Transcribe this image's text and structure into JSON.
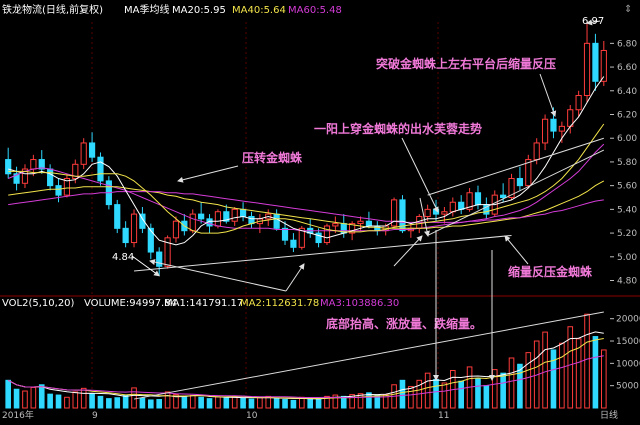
{
  "colors": {
    "up": "#ff3c3c",
    "down": "#2fd9ff",
    "ma5": "#ffffff",
    "ma10": "#f2e34a",
    "ma20": "#d43cd7",
    "vol_ma5": "#ffffff",
    "vol_ma10": "#f2e34a",
    "vol_ma20": "#d43cd7",
    "annotation": "#f079d8",
    "trendline": "#dcdcdc",
    "axis_text": "#bdbdbd"
  },
  "header": {
    "title": "铁龙物流(日线,前复权)",
    "ma_label": "MA季均线",
    "ma20": "MA20:5.95",
    "ma40": "MA40:5.64",
    "ma60": "MA60:5.48"
  },
  "volume_header": {
    "label": "VOL2(5,10,20)",
    "volume": "VOLUME:94997.84",
    "ma1": "MA1:141791.17",
    "ma2": "MA2:112631.78",
    "ma3": "MA3:103886.30"
  },
  "annotations": {
    "breakout": "突破金蜘蛛上左右平台后缩量反压",
    "one_yang": "一阳上穿金蜘蛛的出水芙蓉走势",
    "support": "压转金蜘蛛",
    "shrink_retest": "缩量反压金蜘蛛",
    "bottom": "底部抬高、涨放量、跌缩量。",
    "high_label": "6.97",
    "low_label": "4.84"
  },
  "bottom_labels": [
    "2016年",
    "9",
    "10",
    "11",
    "日线"
  ],
  "chart_data": [
    {
      "type": "candlestick",
      "title": "铁龙物流(日线,前复权)",
      "y_ticks": [
        6.8,
        6.6,
        6.4,
        6.2,
        6.0,
        5.8,
        5.6,
        5.4,
        5.2,
        5.0,
        4.8
      ],
      "ylim": [
        4.72,
        6.98
      ],
      "grid": false,
      "candles": [
        [
          5.82,
          5.92,
          5.66,
          5.7
        ],
        [
          5.7,
          5.76,
          5.56,
          5.62
        ],
        [
          5.62,
          5.78,
          5.58,
          5.74
        ],
        [
          5.74,
          5.86,
          5.68,
          5.82
        ],
        [
          5.82,
          5.9,
          5.7,
          5.74
        ],
        [
          5.74,
          5.78,
          5.56,
          5.6
        ],
        [
          5.6,
          5.66,
          5.46,
          5.52
        ],
        [
          5.52,
          5.7,
          5.5,
          5.66
        ],
        [
          5.66,
          5.82,
          5.62,
          5.78
        ],
        [
          5.78,
          6.0,
          5.74,
          5.96
        ],
        [
          5.96,
          6.05,
          5.8,
          5.84
        ],
        [
          5.84,
          5.88,
          5.6,
          5.64
        ],
        [
          5.64,
          5.68,
          5.4,
          5.44
        ],
        [
          5.44,
          5.48,
          5.2,
          5.24
        ],
        [
          5.24,
          5.3,
          5.08,
          5.12
        ],
        [
          5.12,
          5.4,
          5.08,
          5.36
        ],
        [
          5.36,
          5.42,
          5.2,
          5.24
        ],
        [
          5.24,
          5.28,
          4.98,
          5.04
        ],
        [
          5.04,
          5.08,
          4.84,
          4.92
        ],
        [
          4.92,
          5.18,
          4.9,
          5.16
        ],
        [
          5.16,
          5.34,
          5.12,
          5.3
        ],
        [
          5.3,
          5.36,
          5.18,
          5.22
        ],
        [
          5.22,
          5.4,
          5.2,
          5.36
        ],
        [
          5.36,
          5.46,
          5.28,
          5.32
        ],
        [
          5.32,
          5.36,
          5.2,
          5.26
        ],
        [
          5.26,
          5.4,
          5.24,
          5.38
        ],
        [
          5.38,
          5.44,
          5.28,
          5.3
        ],
        [
          5.3,
          5.42,
          5.26,
          5.4
        ],
        [
          5.4,
          5.46,
          5.3,
          5.34
        ],
        [
          5.34,
          5.38,
          5.24,
          5.28
        ],
        [
          5.28,
          5.36,
          5.2,
          5.32
        ],
        [
          5.32,
          5.4,
          5.26,
          5.36
        ],
        [
          5.36,
          5.4,
          5.22,
          5.24
        ],
        [
          5.24,
          5.3,
          5.1,
          5.14
        ],
        [
          5.14,
          5.2,
          5.04,
          5.08
        ],
        [
          5.08,
          5.26,
          5.06,
          5.24
        ],
        [
          5.24,
          5.32,
          5.16,
          5.2
        ],
        [
          5.2,
          5.24,
          5.08,
          5.12
        ],
        [
          5.12,
          5.28,
          5.1,
          5.26
        ],
        [
          5.26,
          5.34,
          5.2,
          5.28
        ],
        [
          5.28,
          5.36,
          5.16,
          5.2
        ],
        [
          5.2,
          5.3,
          5.14,
          5.28
        ],
        [
          5.28,
          5.34,
          5.22,
          5.3
        ],
        [
          5.3,
          5.38,
          5.24,
          5.26
        ],
        [
          5.26,
          5.3,
          5.18,
          5.22
        ],
        [
          5.22,
          5.28,
          5.18,
          5.26
        ],
        [
          5.26,
          5.5,
          5.24,
          5.48
        ],
        [
          5.48,
          5.52,
          5.2,
          5.22
        ],
        [
          5.22,
          5.28,
          5.16,
          5.24
        ],
        [
          5.24,
          5.36,
          5.2,
          5.34
        ],
        [
          5.34,
          5.44,
          5.3,
          5.4
        ],
        [
          5.4,
          5.48,
          5.3,
          5.36
        ],
        [
          5.36,
          5.42,
          5.28,
          5.38
        ],
        [
          5.38,
          5.5,
          5.34,
          5.46
        ],
        [
          5.46,
          5.52,
          5.36,
          5.4
        ],
        [
          5.4,
          5.58,
          5.38,
          5.54
        ],
        [
          5.54,
          5.6,
          5.4,
          5.44
        ],
        [
          5.44,
          5.5,
          5.32,
          5.36
        ],
        [
          5.36,
          5.56,
          5.34,
          5.52
        ],
        [
          5.52,
          5.62,
          5.46,
          5.5
        ],
        [
          5.5,
          5.7,
          5.48,
          5.66
        ],
        [
          5.66,
          5.76,
          5.56,
          5.6
        ],
        [
          5.6,
          5.86,
          5.58,
          5.82
        ],
        [
          5.82,
          6.0,
          5.78,
          5.96
        ],
        [
          5.96,
          6.2,
          5.9,
          6.16
        ],
        [
          6.16,
          6.26,
          6.0,
          6.06
        ],
        [
          6.06,
          6.14,
          5.96,
          6.1
        ],
        [
          6.1,
          6.28,
          6.04,
          6.24
        ],
        [
          6.24,
          6.4,
          6.18,
          6.36
        ],
        [
          6.36,
          6.97,
          6.3,
          6.8
        ],
        [
          6.8,
          6.88,
          6.4,
          6.48
        ],
        [
          6.48,
          6.82,
          6.44,
          6.74
        ]
      ],
      "ma_lines": [
        {
          "name": "MA20",
          "values": [
            5.66,
            5.69,
            5.72,
            5.74,
            5.75,
            5.74,
            5.72,
            5.7,
            5.68,
            5.66,
            5.64,
            5.62,
            5.6,
            5.58,
            5.56,
            5.53,
            5.5,
            5.47,
            5.44,
            5.41,
            5.38,
            5.35,
            5.32,
            5.3,
            5.28,
            5.26,
            5.25,
            5.24,
            5.24,
            5.24,
            5.24,
            5.24,
            5.23,
            5.23,
            5.23,
            5.22,
            5.22,
            5.22,
            5.22,
            5.22,
            5.22,
            5.22,
            5.22,
            5.22,
            5.22,
            5.22,
            5.23,
            5.23,
            5.23,
            5.24,
            5.25,
            5.26,
            5.27,
            5.28,
            5.29,
            5.3,
            5.31,
            5.32,
            5.34,
            5.35,
            5.37,
            5.39,
            5.42,
            5.46,
            5.51,
            5.56,
            5.61,
            5.66,
            5.72,
            5.8,
            5.88,
            5.95
          ]
        },
        {
          "name": "MA40",
          "values": [
            5.52,
            5.53,
            5.54,
            5.55,
            5.56,
            5.57,
            5.57,
            5.58,
            5.58,
            5.59,
            5.59,
            5.59,
            5.59,
            5.59,
            5.58,
            5.57,
            5.56,
            5.55,
            5.54,
            5.52,
            5.51,
            5.49,
            5.48,
            5.46,
            5.45,
            5.44,
            5.42,
            5.41,
            5.4,
            5.39,
            5.38,
            5.37,
            5.36,
            5.35,
            5.34,
            5.33,
            5.32,
            5.31,
            5.3,
            5.29,
            5.28,
            5.27,
            5.26,
            5.25,
            5.25,
            5.24,
            5.24,
            5.24,
            5.24,
            5.24,
            5.24,
            5.25,
            5.25,
            5.26,
            5.26,
            5.27,
            5.28,
            5.29,
            5.3,
            5.31,
            5.32,
            5.33,
            5.35,
            5.37,
            5.39,
            5.42,
            5.45,
            5.48,
            5.51,
            5.55,
            5.6,
            5.64
          ]
        },
        {
          "name": "MA60",
          "values": [
            5.44,
            5.45,
            5.46,
            5.47,
            5.48,
            5.49,
            5.5,
            5.51,
            5.52,
            5.53,
            5.53,
            5.54,
            5.54,
            5.55,
            5.55,
            5.55,
            5.55,
            5.55,
            5.55,
            5.54,
            5.54,
            5.53,
            5.53,
            5.52,
            5.51,
            5.5,
            5.49,
            5.48,
            5.47,
            5.46,
            5.45,
            5.44,
            5.43,
            5.42,
            5.41,
            5.4,
            5.39,
            5.38,
            5.37,
            5.36,
            5.35,
            5.34,
            5.33,
            5.32,
            5.31,
            5.3,
            5.3,
            5.29,
            5.29,
            5.29,
            5.29,
            5.29,
            5.29,
            5.29,
            5.29,
            5.3,
            5.3,
            5.31,
            5.31,
            5.32,
            5.33,
            5.33,
            5.34,
            5.35,
            5.36,
            5.38,
            5.39,
            5.41,
            5.43,
            5.45,
            5.47,
            5.48
          ]
        },
        {
          "name": "MA5",
          "values": [
            5.74,
            5.72,
            5.7,
            5.7,
            5.72,
            5.7,
            5.66,
            5.64,
            5.65,
            5.7,
            5.78,
            5.8,
            5.76,
            5.68,
            5.56,
            5.44,
            5.32,
            5.22,
            5.14,
            5.12,
            5.1,
            5.12,
            5.18,
            5.26,
            5.3,
            5.3,
            5.31,
            5.33,
            5.34,
            5.32,
            5.32,
            5.34,
            5.32,
            5.28,
            5.24,
            5.22,
            5.2,
            5.18,
            5.16,
            5.18,
            5.2,
            5.22,
            5.24,
            5.26,
            5.26,
            5.26,
            5.3,
            5.3,
            5.28,
            5.3,
            5.32,
            5.32,
            5.34,
            5.38,
            5.4,
            5.42,
            5.44,
            5.44,
            5.44,
            5.46,
            5.48,
            5.52,
            5.58,
            5.66,
            5.76,
            5.88,
            6.0,
            6.1,
            6.18,
            6.3,
            6.42,
            6.52
          ]
        },
        {
          "name": "MA10",
          "values": [
            5.72,
            5.72,
            5.72,
            5.71,
            5.71,
            5.71,
            5.7,
            5.69,
            5.68,
            5.68,
            5.69,
            5.7,
            5.7,
            5.7,
            5.68,
            5.64,
            5.58,
            5.52,
            5.45,
            5.38,
            5.32,
            5.26,
            5.22,
            5.2,
            5.2,
            5.2,
            5.21,
            5.23,
            5.26,
            5.28,
            5.3,
            5.31,
            5.32,
            5.32,
            5.31,
            5.29,
            5.27,
            5.25,
            5.23,
            5.22,
            5.21,
            5.21,
            5.21,
            5.22,
            5.22,
            5.23,
            5.25,
            5.26,
            5.27,
            5.28,
            5.29,
            5.3,
            5.31,
            5.32,
            5.34,
            5.35,
            5.37,
            5.38,
            5.4,
            5.42,
            5.44,
            5.46,
            5.48,
            5.51,
            5.55,
            5.6,
            5.66,
            5.74,
            5.82,
            5.92,
            6.02,
            6.12
          ]
        }
      ],
      "trendlines": [
        {
          "name": "support",
          "from": [
            15,
            4.88
          ],
          "to": [
            60,
            5.18
          ]
        },
        {
          "name": "channel_lower",
          "from": [
            50,
            5.18
          ],
          "to": [
            71,
            5.9
          ]
        },
        {
          "name": "channel_upper",
          "from": [
            50,
            5.52
          ],
          "to": [
            71,
            6.0
          ]
        }
      ]
    },
    {
      "type": "bar",
      "title": "VOL2(5,10,20)",
      "y_ticks": [
        20000,
        15000,
        10000,
        5000
      ],
      "ylim": [
        0,
        21500
      ],
      "values": [
        6200,
        4200,
        3800,
        4600,
        5200,
        3100,
        2900,
        2400,
        3600,
        4400,
        3200,
        2600,
        2100,
        2300,
        2800,
        4500,
        2200,
        1800,
        1900,
        3600,
        3000,
        2600,
        2800,
        2400,
        2100,
        2500,
        2300,
        2600,
        2200,
        2000,
        2300,
        2600,
        2100,
        1900,
        1700,
        2400,
        2200,
        2000,
        2600,
        2900,
        2600,
        3000,
        3200,
        3400,
        2800,
        3000,
        5200,
        6200,
        4800,
        6200,
        7800,
        6400,
        5600,
        8400,
        6000,
        9200,
        6600,
        5000,
        8600,
        7800,
        11200,
        9800,
        12400,
        15000,
        17000,
        13000,
        14500,
        18200,
        15500,
        21000,
        16000,
        13000
      ],
      "up_flags": [
        0,
        0,
        1,
        1,
        0,
        0,
        0,
        1,
        1,
        1,
        0,
        0,
        0,
        0,
        0,
        1,
        0,
        0,
        0,
        1,
        1,
        0,
        1,
        0,
        0,
        1,
        0,
        1,
        0,
        0,
        1,
        1,
        0,
        0,
        0,
        1,
        0,
        0,
        1,
        1,
        0,
        1,
        1,
        0,
        0,
        1,
        1,
        0,
        1,
        1,
        1,
        0,
        1,
        1,
        0,
        1,
        0,
        0,
        1,
        0,
        1,
        0,
        1,
        1,
        1,
        0,
        1,
        1,
        1,
        1,
        0,
        1
      ],
      "trendline": {
        "from": [
          15,
          2000
        ],
        "to": [
          71,
          21500
        ]
      }
    }
  ]
}
